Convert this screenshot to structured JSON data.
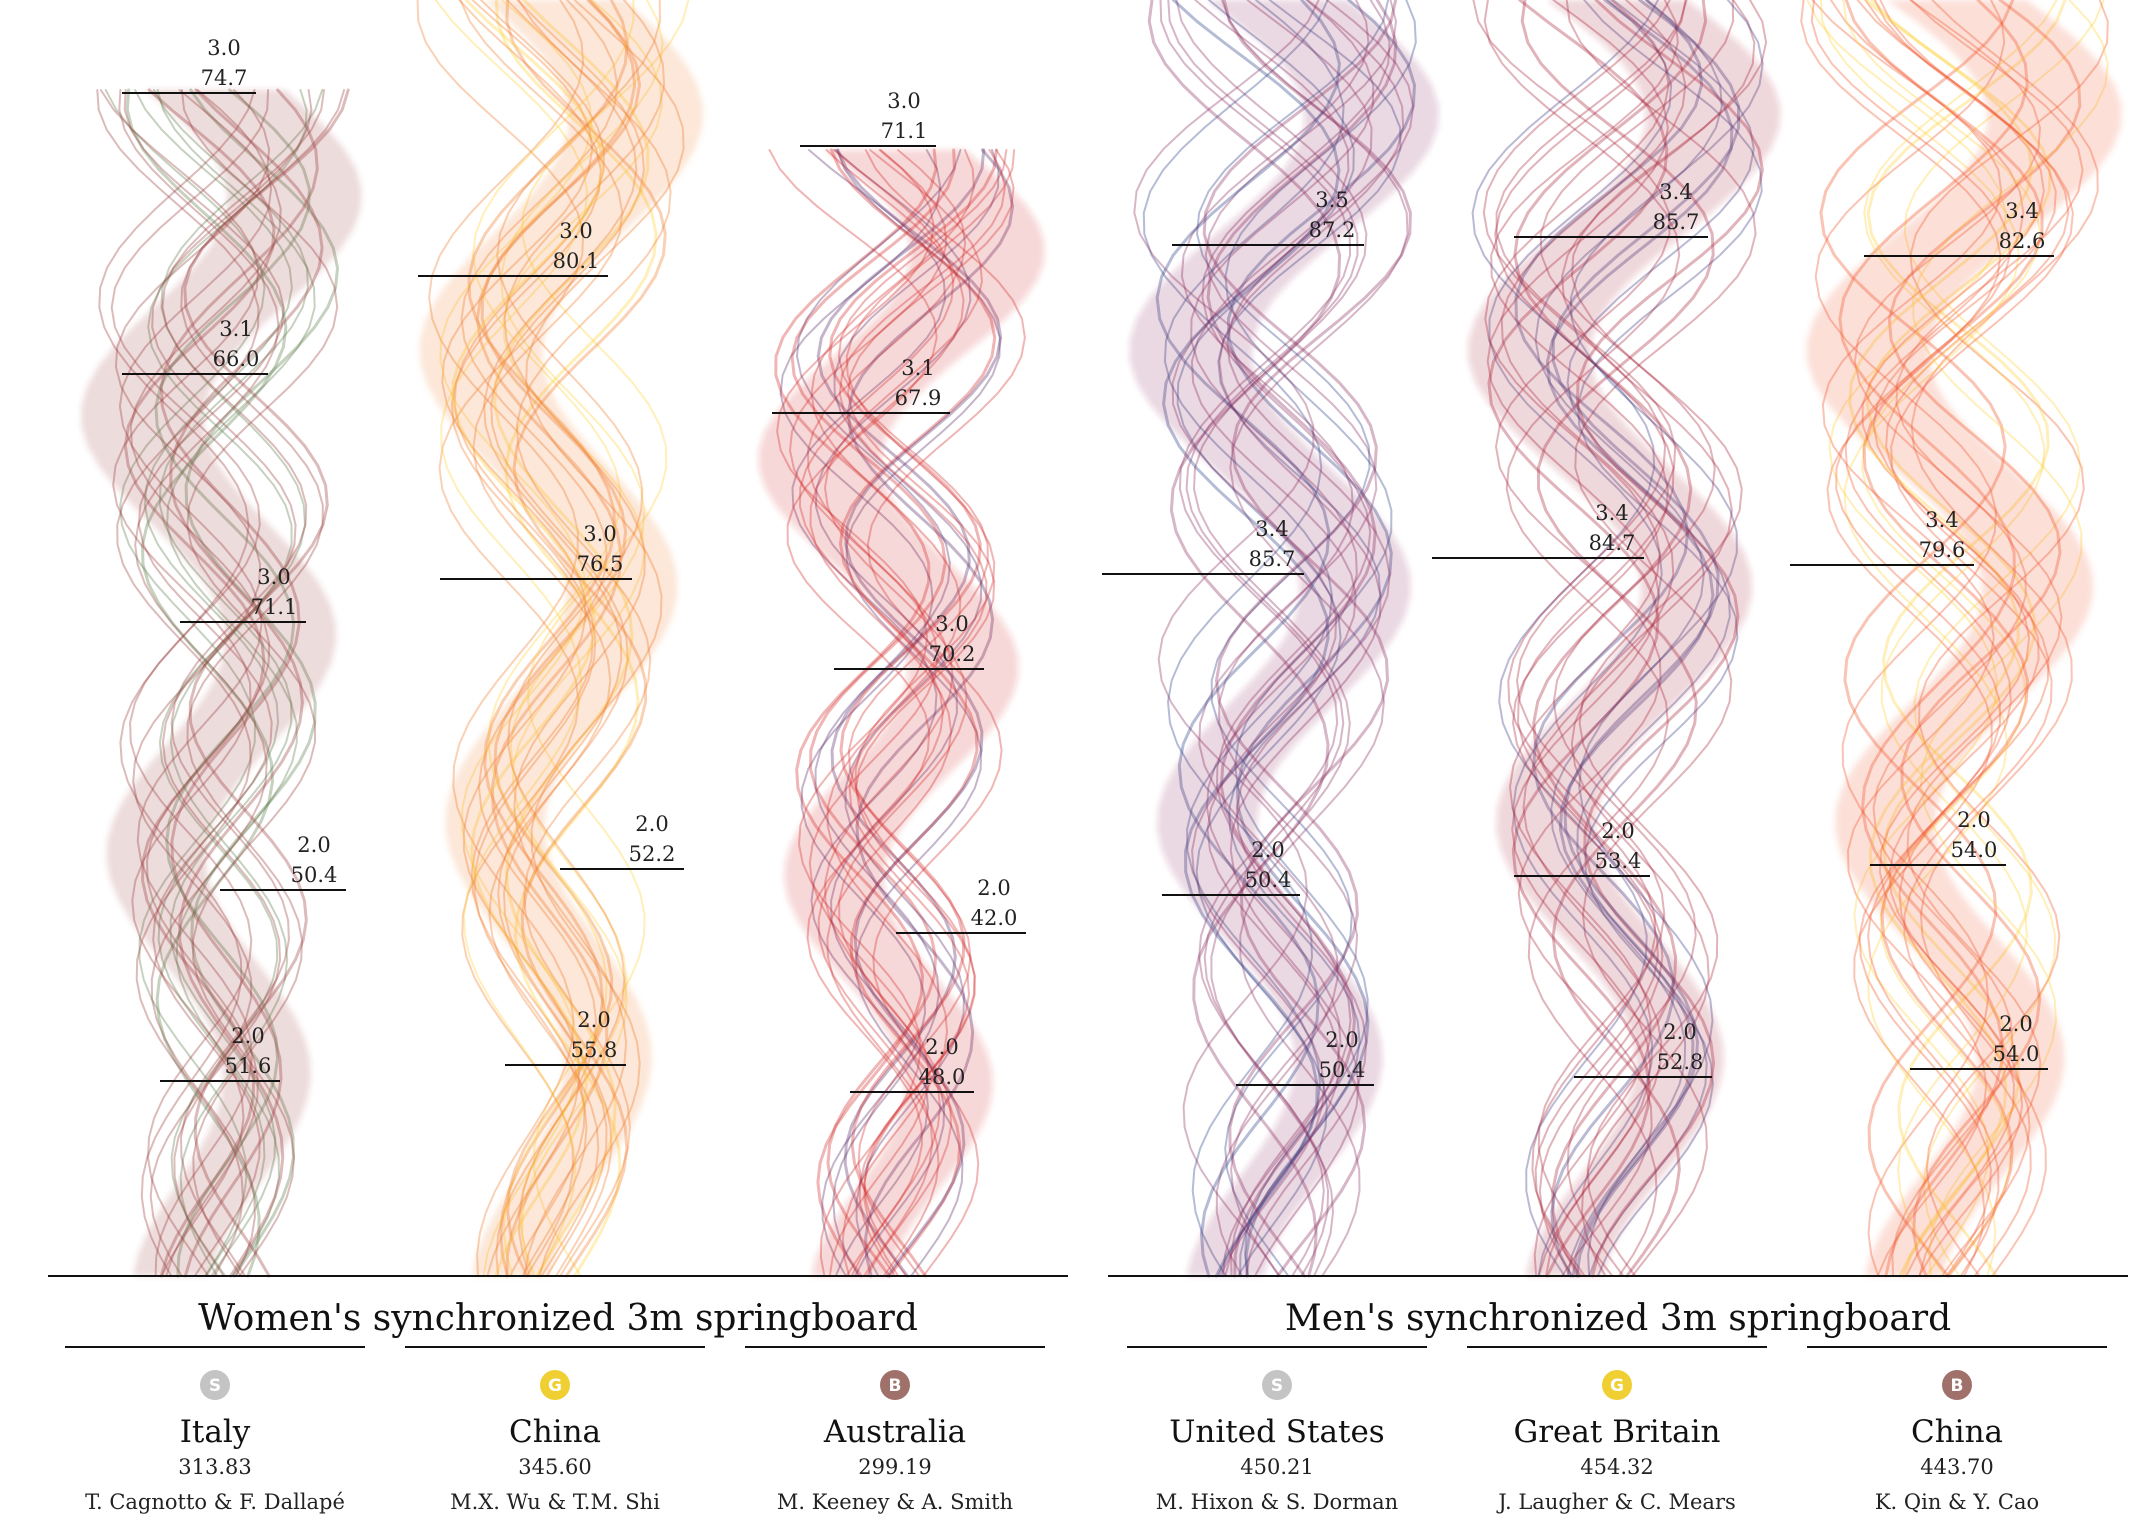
{
  "colors": {
    "silver": "#c4c4c4",
    "gold": "#f0cf33",
    "bronze": "#a0716a"
  },
  "chart_data": {
    "type": "area",
    "events": [
      {
        "title": "Women's synchronized 3m springboard",
        "teams": [
          {
            "medal": "S",
            "country": "Italy",
            "score": "313.83",
            "athletes": "T. Cagnotto & F. Dallapé",
            "colors": [
              "#9c3c3c",
              "#5d7a4a"
            ],
            "dives": [
              {
                "dd": "3.0",
                "points": "74.7"
              },
              {
                "dd": "3.1",
                "points": "66.0"
              },
              {
                "dd": "3.0",
                "points": "71.1"
              },
              {
                "dd": "2.0",
                "points": "50.4"
              },
              {
                "dd": "2.0",
                "points": "51.6"
              }
            ]
          },
          {
            "medal": "G",
            "country": "China",
            "score": "345.60",
            "athletes": "M.X. Wu & T.M. Shi",
            "colors": [
              "#f07a2a",
              "#ffd23a"
            ],
            "dives": [
              {
                "dd": "3.0",
                "points": "80.1"
              },
              {
                "dd": "3.0",
                "points": "76.5"
              },
              {
                "dd": "2.0",
                "points": "52.2"
              },
              {
                "dd": "2.0",
                "points": "55.8"
              }
            ]
          },
          {
            "medal": "B",
            "country": "Australia",
            "score": "299.19",
            "athletes": "M. Keeney & A. Smith",
            "colors": [
              "#d42a2a",
              "#5a2a6a"
            ],
            "dives": [
              {
                "dd": "3.0",
                "points": "71.1"
              },
              {
                "dd": "3.1",
                "points": "67.9"
              },
              {
                "dd": "3.0",
                "points": "70.2"
              },
              {
                "dd": "2.0",
                "points": "42.0"
              },
              {
                "dd": "2.0",
                "points": "48.0"
              }
            ]
          }
        ]
      },
      {
        "title": "Men's synchronized 3m springboard",
        "teams": [
          {
            "medal": "S",
            "country": "United States",
            "score": "450.21",
            "athletes": "M. Hixon & S. Dorman",
            "colors": [
              "#8a2d5e",
              "#2c3f86"
            ],
            "dives": [
              {
                "dd": "3.5",
                "points": "87.2"
              },
              {
                "dd": "3.4",
                "points": "85.7"
              },
              {
                "dd": "2.0",
                "points": "50.4"
              },
              {
                "dd": "2.0",
                "points": "50.4"
              }
            ]
          },
          {
            "medal": "G",
            "country": "Great Britain",
            "score": "454.32",
            "athletes": "J. Laugher & C. Mears",
            "colors": [
              "#a8243c",
              "#3a3a84"
            ],
            "dives": [
              {
                "dd": "3.4",
                "points": "85.7"
              },
              {
                "dd": "3.4",
                "points": "84.7"
              },
              {
                "dd": "2.0",
                "points": "53.4"
              },
              {
                "dd": "2.0",
                "points": "52.8"
              }
            ]
          },
          {
            "medal": "B",
            "country": "China",
            "score": "443.70",
            "athletes": "K. Qin & Y. Cao",
            "colors": [
              "#f0552a",
              "#ffd23a"
            ],
            "dives": [
              {
                "dd": "3.4",
                "points": "82.6"
              },
              {
                "dd": "3.4",
                "points": "79.6"
              },
              {
                "dd": "2.0",
                "points": "54.0"
              },
              {
                "dd": "2.0",
                "points": "54.0"
              }
            ]
          }
        ]
      }
    ]
  }
}
